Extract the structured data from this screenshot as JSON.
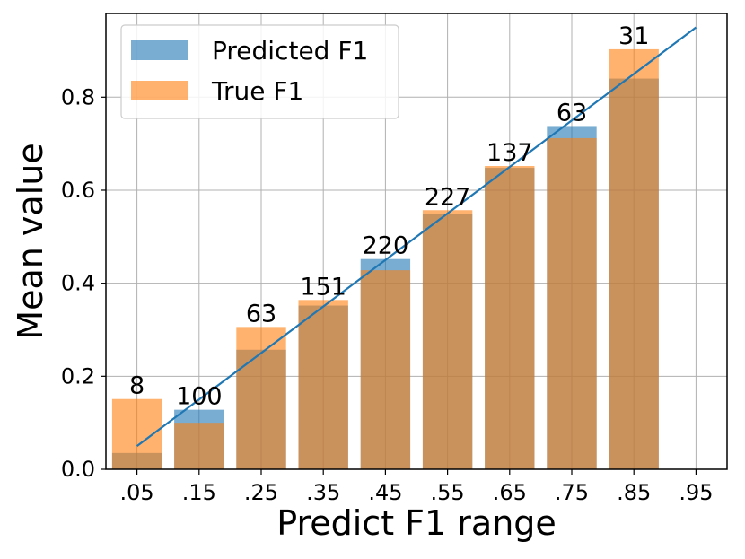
{
  "chart_data": {
    "type": "bar",
    "xlabel": "Predict F1 range",
    "ylabel": "Mean value",
    "categories": [
      ".05",
      ".15",
      ".25",
      ".35",
      ".45",
      ".55",
      ".65",
      ".75",
      ".85",
      ".95"
    ],
    "ylim": [
      0,
      0.98
    ],
    "yticks": [
      "0.0",
      "0.2",
      "0.4",
      "0.6",
      "0.8"
    ],
    "grid": true,
    "legend_position": "upper-left",
    "series": [
      {
        "name": "Predicted F1",
        "color": "#1f77b4",
        "opacity": 0.6,
        "values": [
          0.035,
          0.128,
          0.257,
          0.352,
          0.452,
          0.548,
          0.648,
          0.738,
          0.84,
          null
        ]
      },
      {
        "name": "True F1",
        "color": "#ff7f0e",
        "opacity": 0.6,
        "values": [
          0.151,
          0.1,
          0.306,
          0.364,
          0.428,
          0.557,
          0.652,
          0.712,
          0.903,
          null
        ]
      }
    ],
    "counts": [
      "8",
      "100",
      "63",
      "151",
      "220",
      "227",
      "137",
      "63",
      "31",
      ""
    ],
    "reference_line": {
      "color": "#1f77b4",
      "x": [
        0.05,
        0.95
      ],
      "y": [
        0.05,
        0.95
      ]
    }
  }
}
